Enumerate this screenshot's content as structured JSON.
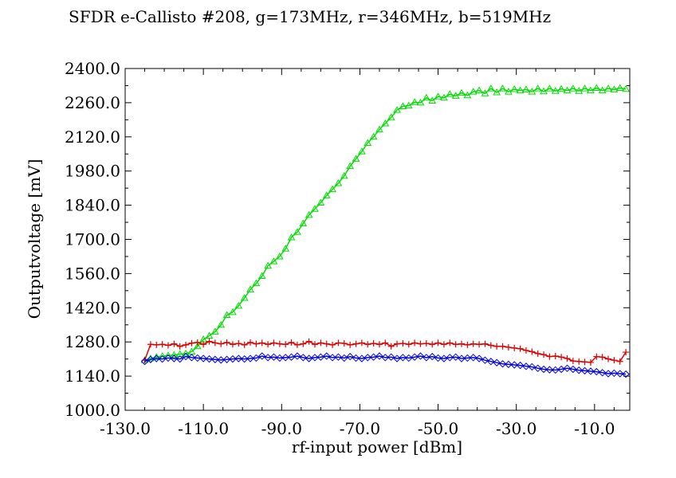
{
  "chart_data": {
    "type": "line",
    "title": "SFDR e-Callisto #208, g=173MHz, r=346MHz, b=519MHz",
    "xlabel": "rf-input power [dBm]",
    "ylabel": "Outputvoltage [mV]",
    "xlim": [
      -130,
      -1
    ],
    "ylim": [
      1000,
      2400
    ],
    "x_ticks": [
      "-130.0",
      "-110.0",
      "-90.0",
      "-70.0",
      "-50.0",
      "-30.0",
      "-10.0"
    ],
    "x_tick_values": [
      -130,
      -110,
      -90,
      -70,
      -50,
      -30,
      -10
    ],
    "y_ticks": [
      "1000.0",
      "1140.0",
      "1280.0",
      "1420.0",
      "1560.0",
      "1700.0",
      "1840.0",
      "1980.0",
      "2120.0",
      "2260.0",
      "2400.0"
    ],
    "y_tick_values": [
      1000,
      1140,
      1280,
      1420,
      1560,
      1700,
      1840,
      1980,
      2120,
      2260,
      2400
    ],
    "grid": false,
    "series": [
      {
        "color": "#00dd00",
        "marker": "triangle",
        "x": [
          -125,
          -123.5,
          -122,
          -120.5,
          -119,
          -117.5,
          -116,
          -114.5,
          -113,
          -111.5,
          -110,
          -108.5,
          -107,
          -105.5,
          -104,
          -102.5,
          -101,
          -99.5,
          -98,
          -96.5,
          -95,
          -93.5,
          -92,
          -90.5,
          -89,
          -87.5,
          -86,
          -84.5,
          -83,
          -81.5,
          -80,
          -78.5,
          -77,
          -75.5,
          -74,
          -72.5,
          -71,
          -69.5,
          -68,
          -66.5,
          -65,
          -63.5,
          -62,
          -60.5,
          -59,
          -57.5,
          -56,
          -54.5,
          -53,
          -51.5,
          -50,
          -48.5,
          -47,
          -45.5,
          -44,
          -42.5,
          -41,
          -39.5,
          -38,
          -36.5,
          -35,
          -33.5,
          -32,
          -30.5,
          -29,
          -27.5,
          -26,
          -24.5,
          -23,
          -21.5,
          -20,
          -18.5,
          -17,
          -15.5,
          -14,
          -12.5,
          -11,
          -9.5,
          -8,
          -6.5,
          -5,
          -3.5,
          -2
        ],
        "y": [
          1205,
          1212,
          1218,
          1222,
          1224,
          1226,
          1230,
          1232,
          1240,
          1262,
          1290,
          1305,
          1322,
          1350,
          1390,
          1402,
          1428,
          1460,
          1495,
          1520,
          1550,
          1592,
          1610,
          1630,
          1662,
          1708,
          1730,
          1765,
          1800,
          1825,
          1850,
          1880,
          1905,
          1930,
          1960,
          2000,
          2030,
          2060,
          2095,
          2120,
          2150,
          2175,
          2200,
          2230,
          2245,
          2248,
          2262,
          2260,
          2280,
          2268,
          2285,
          2280,
          2295,
          2288,
          2300,
          2290,
          2305,
          2310,
          2298,
          2318,
          2302,
          2318,
          2305,
          2315,
          2310,
          2314,
          2305,
          2318,
          2306,
          2318,
          2308,
          2316,
          2310,
          2318,
          2308,
          2318,
          2310,
          2320,
          2310,
          2318,
          2314,
          2320,
          2316
        ]
      },
      {
        "color": "#dd0000",
        "marker": "plus",
        "x": [
          -125,
          -123.5,
          -122,
          -120.5,
          -119,
          -117.5,
          -116,
          -114.5,
          -113,
          -111.5,
          -110,
          -108.5,
          -107,
          -105.5,
          -104,
          -102.5,
          -101,
          -99.5,
          -98,
          -96.5,
          -95,
          -93.5,
          -92,
          -90.5,
          -89,
          -87.5,
          -86,
          -84.5,
          -83,
          -81.5,
          -80,
          -78.5,
          -77,
          -75.5,
          -74,
          -72.5,
          -71,
          -69.5,
          -68,
          -66.5,
          -65,
          -63.5,
          -62,
          -60.5,
          -59,
          -57.5,
          -56,
          -54.5,
          -53,
          -51.5,
          -50,
          -48.5,
          -47,
          -45.5,
          -44,
          -42.5,
          -41,
          -39.5,
          -38,
          -36.5,
          -35,
          -33.5,
          -32,
          -30.5,
          -29,
          -27.5,
          -26,
          -24.5,
          -23,
          -21.5,
          -20,
          -18.5,
          -17,
          -15.5,
          -14,
          -12.5,
          -11,
          -9.5,
          -8,
          -6.5,
          -5,
          -3.5,
          -2
        ],
        "y": [
          1205,
          1270,
          1268,
          1270,
          1266,
          1272,
          1262,
          1268,
          1275,
          1278,
          1270,
          1282,
          1276,
          1272,
          1278,
          1270,
          1274,
          1268,
          1278,
          1272,
          1276,
          1270,
          1276,
          1272,
          1270,
          1278,
          1268,
          1272,
          1282,
          1270,
          1276,
          1272,
          1268,
          1276,
          1274,
          1268,
          1272,
          1276,
          1270,
          1274,
          1270,
          1276,
          1262,
          1272,
          1274,
          1270,
          1276,
          1272,
          1274,
          1270,
          1276,
          1270,
          1276,
          1270,
          1272,
          1268,
          1272,
          1270,
          1272,
          1266,
          1262,
          1262,
          1258,
          1255,
          1252,
          1245,
          1240,
          1232,
          1228,
          1220,
          1222,
          1218,
          1212,
          1202,
          1200,
          1198,
          1196,
          1220,
          1218,
          1210,
          1205,
          1200,
          1238
        ]
      },
      {
        "color": "#0000dd",
        "marker": "diamond",
        "x": [
          -125,
          -123.5,
          -122,
          -120.5,
          -119,
          -117.5,
          -116,
          -114.5,
          -113,
          -111.5,
          -110,
          -108.5,
          -107,
          -105.5,
          -104,
          -102.5,
          -101,
          -99.5,
          -98,
          -96.5,
          -95,
          -93.5,
          -92,
          -90.5,
          -89,
          -87.5,
          -86,
          -84.5,
          -83,
          -81.5,
          -80,
          -78.5,
          -77,
          -75.5,
          -74,
          -72.5,
          -71,
          -69.5,
          -68,
          -66.5,
          -65,
          -63.5,
          -62,
          -60.5,
          -59,
          -57.5,
          -56,
          -54.5,
          -53,
          -51.5,
          -50,
          -48.5,
          -47,
          -45.5,
          -44,
          -42.5,
          -41,
          -39.5,
          -38,
          -36.5,
          -35,
          -33.5,
          -32,
          -30.5,
          -29,
          -27.5,
          -26,
          -24.5,
          -23,
          -21.5,
          -20,
          -18.5,
          -17,
          -15.5,
          -14,
          -12.5,
          -11,
          -9.5,
          -8,
          -6.5,
          -5,
          -3.5,
          -2
        ],
        "y": [
          1200,
          1208,
          1212,
          1210,
          1214,
          1212,
          1210,
          1220,
          1216,
          1214,
          1212,
          1210,
          1208,
          1206,
          1208,
          1210,
          1212,
          1210,
          1212,
          1214,
          1222,
          1216,
          1218,
          1214,
          1216,
          1218,
          1222,
          1216,
          1212,
          1216,
          1218,
          1222,
          1216,
          1218,
          1214,
          1220,
          1214,
          1212,
          1216,
          1218,
          1222,
          1216,
          1218,
          1212,
          1216,
          1214,
          1218,
          1222,
          1216,
          1220,
          1214,
          1212,
          1216,
          1218,
          1212,
          1214,
          1216,
          1212,
          1205,
          1200,
          1195,
          1190,
          1188,
          1186,
          1184,
          1180,
          1178,
          1172,
          1168,
          1166,
          1165,
          1168,
          1172,
          1168,
          1164,
          1162,
          1160,
          1158,
          1154,
          1150,
          1152,
          1150,
          1148
        ]
      }
    ]
  }
}
